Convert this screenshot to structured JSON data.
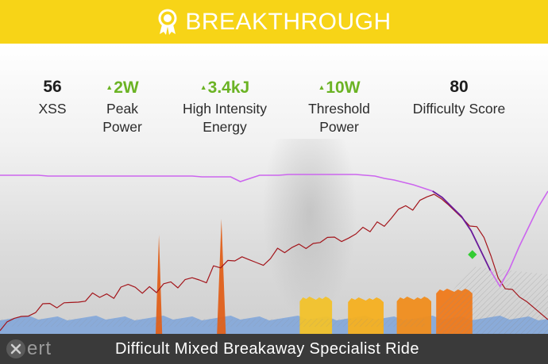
{
  "banner": {
    "title": "BREAKTHROUGH",
    "icon": "award-ribbon-icon",
    "color": "#f7d417"
  },
  "stats": [
    {
      "id": "xss",
      "value": "56",
      "label_lines": [
        "XSS"
      ],
      "trend": "none"
    },
    {
      "id": "peak-power",
      "value": "2W",
      "label_lines": [
        "Peak",
        "Power"
      ],
      "trend": "up"
    },
    {
      "id": "high-intensity-energy",
      "value": "3.4kJ",
      "label_lines": [
        "High Intensity",
        "Energy"
      ],
      "trend": "up"
    },
    {
      "id": "threshold-power",
      "value": "10W",
      "label_lines": [
        "Threshold",
        "Power"
      ],
      "trend": "up"
    },
    {
      "id": "difficulty-score",
      "value": "80",
      "label_lines": [
        "Difficulty Score"
      ],
      "trend": "none"
    }
  ],
  "footer": {
    "logo_text": "ert",
    "logo_icon": "xert-x-icon",
    "activity_title": "Difficult Mixed Breakaway Specialist Ride"
  },
  "colors": {
    "trend_up": "#6bb324",
    "power_line": "#a3151b",
    "mpa_line": "#cc66ee",
    "mpa_line_dark": "#6a1a9a",
    "endurance_fill": "#7ea4db",
    "breakthrough_marker": "#33cc33"
  },
  "chart_data": {
    "type": "area",
    "series": [
      {
        "key": "power",
        "type": "line",
        "color": "#a3151b",
        "values": [
          8,
          12,
          18,
          22,
          24,
          30,
          34,
          36,
          32,
          40,
          42,
          44,
          38,
          50,
          46,
          52,
          48,
          55,
          60,
          58,
          52,
          62,
          56,
          60,
          64,
          58,
          70,
          74,
          64,
          62,
          85,
          84,
          95,
          96,
          94,
          92,
          90,
          88,
          98,
          104,
          100,
          108,
          114,
          110,
          118,
          112,
          120,
          122,
          118,
          124,
          122,
          132,
          128,
          142,
          138,
          150,
          154,
          160,
          156,
          170,
          176,
          172,
          168,
          162,
          155,
          148,
          140,
          132,
          120,
          98,
          72,
          60,
          52,
          44,
          40,
          34,
          28,
          22
        ]
      },
      {
        "key": "mpa",
        "type": "line",
        "color": "#cc66ee",
        "values": [
          200,
          200,
          200,
          200,
          200,
          199,
          199,
          199,
          199,
          199,
          199,
          199,
          199,
          199,
          199,
          199,
          199,
          199,
          199,
          199,
          199,
          198,
          198,
          198,
          198,
          192,
          196,
          200,
          200,
          200,
          201,
          201,
          201,
          201,
          201,
          201,
          201,
          201,
          200,
          199,
          196,
          194,
          191,
          188,
          184,
          180,
          172,
          160,
          148,
          130,
          105,
          80,
          60,
          82,
          110,
          135,
          160,
          180
        ]
      },
      {
        "key": "endurance",
        "type": "area",
        "color": "#7ea4db",
        "values": [
          20,
          20,
          20,
          20,
          20,
          20,
          20,
          20,
          20,
          20,
          20,
          20,
          20,
          20,
          20,
          20,
          20,
          20,
          20,
          20,
          20,
          20,
          20,
          20,
          20,
          20,
          20,
          20,
          20,
          20,
          20,
          20,
          20,
          20,
          20,
          20,
          20,
          20,
          20,
          20,
          20,
          20,
          20,
          20,
          20,
          20,
          20,
          20,
          20,
          20,
          20,
          20,
          20,
          20,
          20,
          20,
          20,
          20
        ]
      }
    ],
    "intervals": [
      {
        "start": 0.284,
        "end": 0.296,
        "peak": 125,
        "color": "#e0601a"
      },
      {
        "start": 0.396,
        "end": 0.412,
        "peak": 145,
        "color": "#e0601a"
      },
      {
        "start": 0.547,
        "end": 0.606,
        "peak": 45,
        "color": "#f2c22a"
      },
      {
        "start": 0.635,
        "end": 0.7,
        "peak": 44,
        "color": "#f5b020"
      },
      {
        "start": 0.724,
        "end": 0.787,
        "peak": 45,
        "color": "#f08d1c"
      },
      {
        "start": 0.796,
        "end": 0.862,
        "peak": 55,
        "color": "#f07a1a"
      }
    ],
    "breakthrough_at": 0.862,
    "ylim": [
      0,
      221
    ]
  }
}
